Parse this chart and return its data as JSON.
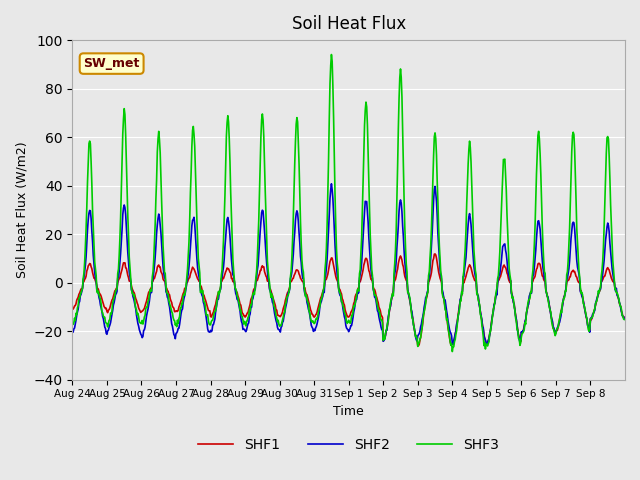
{
  "title": "Soil Heat Flux",
  "ylabel": "Soil Heat Flux (W/m2)",
  "xlabel": "Time",
  "ylim": [
    -40,
    100
  ],
  "yticks": [
    -40,
    -20,
    0,
    20,
    40,
    60,
    80,
    100
  ],
  "background_color": "#e8e8e8",
  "plot_bg_color": "#e8e8e8",
  "shf1_color": "#cc0000",
  "shf2_color": "#0000cc",
  "shf3_color": "#00cc00",
  "line_width": 1.2,
  "legend_label": "SW_met",
  "legend_box_color": "#cc8800",
  "legend_box_bg": "#ffffcc",
  "x_tick_labels": [
    "Aug 24",
    "Aug 25",
    "Aug 26",
    "Aug 27",
    "Aug 28",
    "Aug 29",
    "Aug 30",
    "Aug 31",
    "Sep 1",
    "Sep 2",
    "Sep 3",
    "Sep 4",
    "Sep 5",
    "Sep 6",
    "Sep 7",
    "Sep 8"
  ],
  "amp1": [
    8,
    8,
    7,
    6,
    6,
    7,
    5,
    10,
    10,
    11,
    12,
    7,
    7,
    8,
    5,
    6
  ],
  "amp2": [
    30,
    32,
    28,
    27,
    27,
    30,
    30,
    40,
    34,
    34,
    39,
    28,
    16,
    26,
    25,
    24
  ],
  "amp3": [
    59,
    71,
    62,
    65,
    69,
    70,
    68,
    95,
    75,
    89,
    61,
    58,
    52,
    62,
    62,
    62
  ],
  "n1": [
    -11,
    -12,
    -12,
    -12,
    -14,
    -14,
    -14,
    -14,
    -14,
    -24,
    -26,
    -25,
    -25,
    -21,
    -20,
    -15
  ],
  "n2": [
    -20,
    -21,
    -23,
    -21,
    -20,
    -20,
    -20,
    -20,
    -20,
    -24,
    -22,
    -25,
    -25,
    -21,
    -20,
    -15
  ],
  "n3": [
    -17,
    -17,
    -17,
    -17,
    -17,
    -17,
    -18,
    -17,
    -17,
    -24,
    -26,
    -27,
    -26,
    -22,
    -20,
    -15
  ]
}
